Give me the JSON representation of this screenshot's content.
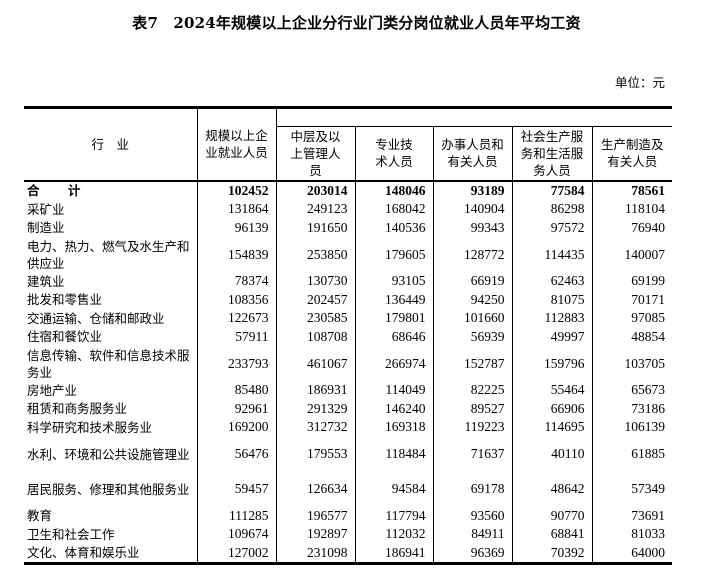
{
  "title": "表7　2024年规模以上企业分行业门类分岗位就业人员年平均工资",
  "unit": "单位：元",
  "columns": [
    "行　业",
    "规模以上企业就业人员",
    "中层及以上管理人员",
    "专业技术人员",
    "办事人员和有关人员",
    "社会生产服务和生活服务人员",
    "生产制造及有关人员"
  ],
  "rows": [
    {
      "name": "合 计",
      "values": [
        "102452",
        "203014",
        "148046",
        "93189",
        "77584",
        "78561"
      ]
    },
    {
      "name": "采矿业",
      "values": [
        "131864",
        "249123",
        "168042",
        "140904",
        "86298",
        "118104"
      ]
    },
    {
      "name": "制造业",
      "values": [
        "96139",
        "191650",
        "140536",
        "99343",
        "97572",
        "76940"
      ]
    },
    {
      "name": "电力、热力、燃气及水生产和供应业",
      "values": [
        "154839",
        "253850",
        "179605",
        "128772",
        "114435",
        "140007"
      ]
    },
    {
      "name": "建筑业",
      "values": [
        "78374",
        "130730",
        "93105",
        "66919",
        "62463",
        "69199"
      ]
    },
    {
      "name": "批发和零售业",
      "values": [
        "108356",
        "202457",
        "136449",
        "94250",
        "81075",
        "70171"
      ]
    },
    {
      "name": "交通运输、仓储和邮政业",
      "values": [
        "122673",
        "230585",
        "179801",
        "101660",
        "112883",
        "97085"
      ]
    },
    {
      "name": "住宿和餐饮业",
      "values": [
        "57911",
        "108708",
        "68646",
        "56939",
        "49997",
        "48854"
      ]
    },
    {
      "name": "信息传输、软件和信息技术服务业",
      "values": [
        "233793",
        "461067",
        "266974",
        "152787",
        "159796",
        "103705"
      ]
    },
    {
      "name": "房地产业",
      "values": [
        "85480",
        "186931",
        "114049",
        "82225",
        "55464",
        "65673"
      ]
    },
    {
      "name": "租赁和商务服务业",
      "values": [
        "92961",
        "291329",
        "146240",
        "89527",
        "66906",
        "73186"
      ]
    },
    {
      "name": "科学研究和技术服务业",
      "values": [
        "169200",
        "312732",
        "169318",
        "119223",
        "114695",
        "106139"
      ]
    },
    {
      "name": "水利、环境和公共设施管理业",
      "values": [
        "56476",
        "179553",
        "118484",
        "71637",
        "40110",
        "61885"
      ]
    },
    {
      "name": "居民服务、修理和其他服务业",
      "values": [
        "59457",
        "126634",
        "94584",
        "69178",
        "48642",
        "57349"
      ]
    },
    {
      "name": "教育",
      "values": [
        "111285",
        "196577",
        "117794",
        "93560",
        "90770",
        "73691"
      ]
    },
    {
      "name": "卫生和社会工作",
      "values": [
        "109674",
        "192897",
        "112032",
        "84911",
        "68841",
        "81033"
      ]
    },
    {
      "name": "文化、体育和娱乐业",
      "values": [
        "127002",
        "231098",
        "186941",
        "96369",
        "70392",
        "64000"
      ]
    }
  ]
}
